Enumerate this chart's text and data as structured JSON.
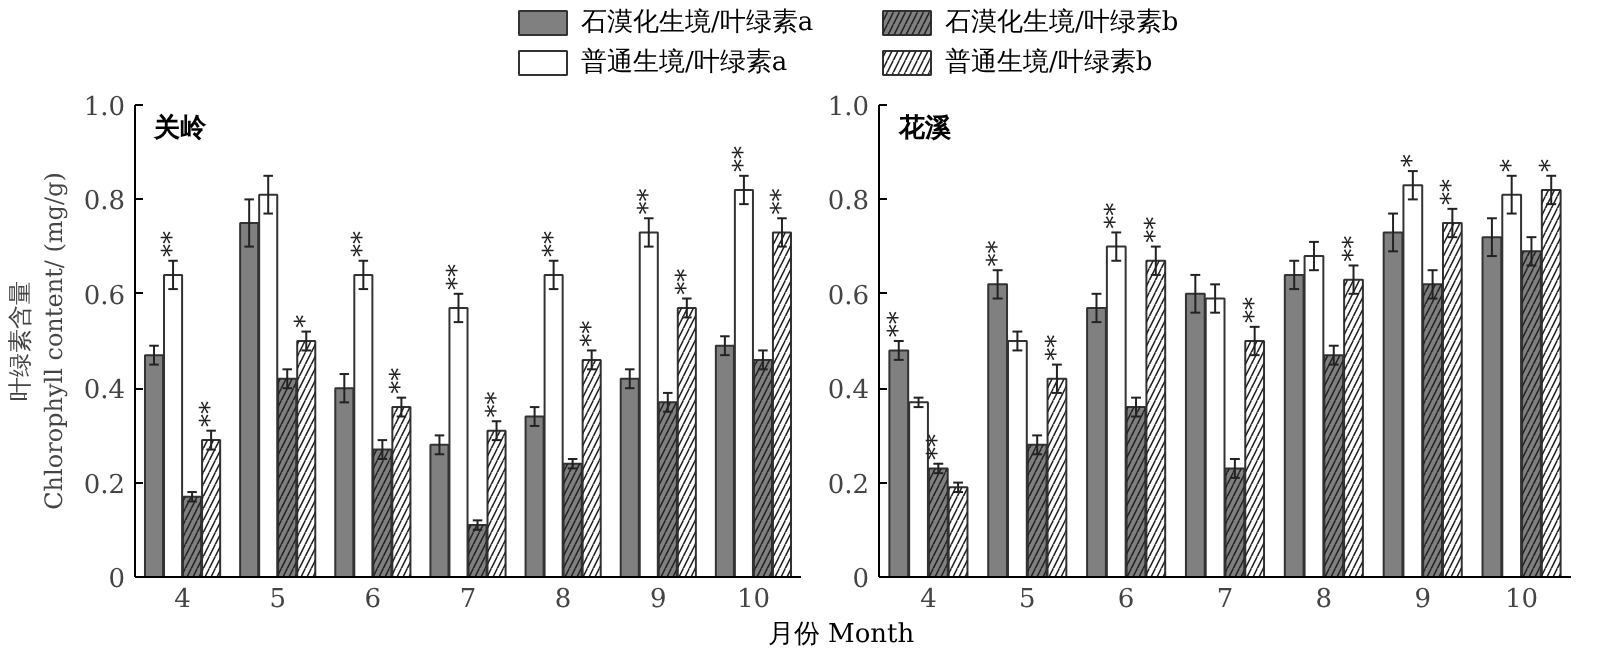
{
  "chart_data": [
    {
      "type": "bar",
      "title": "关岭",
      "xlabel": "月份 Month",
      "ylabel": "叶绿素含量\nChlorophyll content/ (mg/g)",
      "legend": "top",
      "categories": [
        "4",
        "5",
        "6",
        "7",
        "8",
        "9",
        "10"
      ],
      "ylim": [
        0,
        1.0
      ],
      "yticks": [
        0,
        0.2,
        0.4,
        0.6,
        0.8,
        {
          "value": 1.0,
          "label": "1.0"
        }
      ],
      "grid": false,
      "series": [
        {
          "name": "石漠化生境/叶绿素a",
          "color": "#808080",
          "values": [
            0.47,
            0.75,
            0.4,
            0.28,
            0.34,
            0.42,
            0.49
          ],
          "errors": [
            0.02,
            0.05,
            0.03,
            0.02,
            0.02,
            0.02,
            0.02
          ]
        },
        {
          "name": "普通生境/叶绿素a",
          "color": "#ffffff",
          "values": [
            0.64,
            0.81,
            0.64,
            0.57,
            0.64,
            0.73,
            0.82
          ],
          "errors": [
            0.03,
            0.04,
            0.03,
            0.03,
            0.03,
            0.03,
            0.03
          ],
          "value_labels": [
            "**",
            null,
            "**",
            "**",
            "**",
            "**",
            "**"
          ]
        },
        {
          "name": "石漠化生境/叶绿素b",
          "color": "#808080",
          "values": [
            0.17,
            0.42,
            0.27,
            0.11,
            0.24,
            0.37,
            0.46
          ],
          "errors": [
            0.01,
            0.02,
            0.02,
            0.01,
            0.01,
            0.02,
            0.02
          ]
        },
        {
          "name": "普通生境/叶绿素b",
          "color": "#ffffff",
          "values": [
            0.29,
            0.5,
            0.36,
            0.31,
            0.46,
            0.57,
            0.73
          ],
          "errors": [
            0.02,
            0.02,
            0.02,
            0.02,
            0.02,
            0.02,
            0.03
          ],
          "value_labels": [
            "**",
            "*",
            "**",
            "**",
            "**",
            "**",
            "**"
          ]
        }
      ]
    },
    {
      "type": "bar",
      "title": "花溪",
      "categories": [
        "4",
        "5",
        "6",
        "7",
        "8",
        "9",
        "10"
      ],
      "ylim": [
        0,
        1.0
      ],
      "yticks": [
        0,
        0.2,
        0.4,
        0.6,
        0.8,
        {
          "value": 1.0,
          "label": "1.0"
        }
      ],
      "grid": false,
      "series": [
        {
          "color": "#808080",
          "values": [
            0.48,
            0.62,
            0.57,
            0.6,
            0.64,
            0.73,
            0.72
          ],
          "errors": [
            0.02,
            0.03,
            0.03,
            0.04,
            0.03,
            0.04,
            0.04
          ],
          "value_labels": [
            "**",
            "**",
            null,
            null,
            null,
            null,
            null
          ]
        },
        {
          "color": "#ffffff",
          "values": [
            0.37,
            0.5,
            0.7,
            0.59,
            0.68,
            0.83,
            0.81
          ],
          "errors": [
            0.01,
            0.02,
            0.03,
            0.03,
            0.03,
            0.03,
            0.04
          ],
          "value_labels": [
            null,
            null,
            "**",
            null,
            null,
            "*",
            "*"
          ]
        },
        {
          "color": "#808080",
          "values": [
            0.23,
            0.28,
            0.36,
            0.23,
            0.47,
            0.62,
            0.69
          ],
          "errors": [
            0.01,
            0.02,
            0.02,
            0.02,
            0.02,
            0.03,
            0.03
          ],
          "value_labels": [
            "**",
            null,
            null,
            null,
            null,
            null,
            null
          ]
        },
        {
          "color": "#ffffff",
          "values": [
            0.19,
            0.42,
            0.67,
            0.5,
            0.63,
            0.75,
            0.82
          ],
          "errors": [
            0.01,
            0.03,
            0.03,
            0.03,
            0.03,
            0.03,
            0.03
          ],
          "value_labels": [
            null,
            "**",
            "**",
            "**",
            "**",
            "**",
            "*"
          ]
        }
      ]
    }
  ]
}
